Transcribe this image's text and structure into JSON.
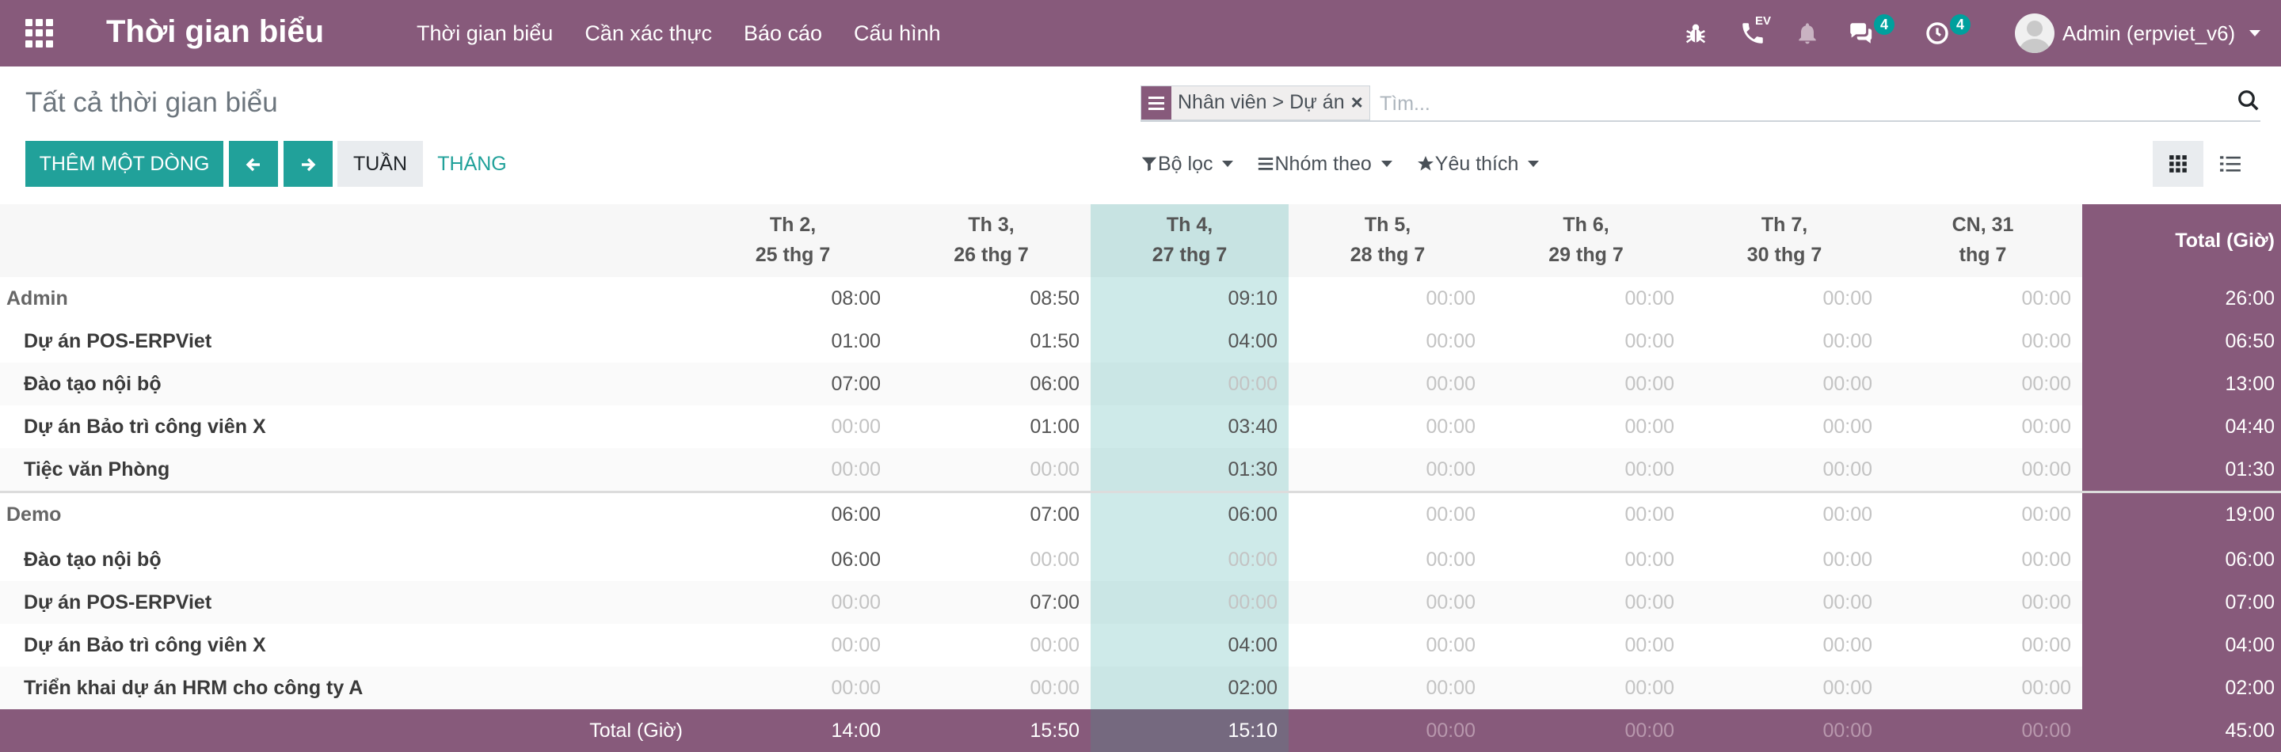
{
  "navbar": {
    "brand": "Thời gian biểu",
    "menu": [
      "Thời gian biểu",
      "Cần xác thực",
      "Báo cáo",
      "Cấu hình"
    ],
    "phone_badge": "EV",
    "messages_count": "4",
    "activities_count": "4",
    "user_name": "Admin (erpviet_v6)"
  },
  "control_panel": {
    "title": "Tất cả thời gian biểu",
    "add_line": "THÊM MỘT DÒNG",
    "week": "TUẦN",
    "month": "THÁNG",
    "search_facet": "Nhân viên > Dự án",
    "search_placeholder": "Tìm...",
    "filter": "Bộ lọc",
    "group_by": "Nhóm theo",
    "favorites": "Yêu thích"
  },
  "colors": {
    "brand": "#875a7b",
    "primary": "#21a19a"
  },
  "grid": {
    "days": [
      {
        "line1": "Th 2,",
        "line2": "25 thg 7"
      },
      {
        "line1": "Th 3,",
        "line2": "26 thg 7"
      },
      {
        "line1": "Th 4,",
        "line2": "27 thg 7",
        "today": true
      },
      {
        "line1": "Th 5,",
        "line2": "28 thg 7"
      },
      {
        "line1": "Th 6,",
        "line2": "29 thg 7"
      },
      {
        "line1": "Th 7,",
        "line2": "30 thg 7"
      },
      {
        "line1": "CN, 31",
        "line2": "thg 7"
      }
    ],
    "total_header": "Total (Giờ)",
    "groups": [
      {
        "name": "Admin",
        "totals": [
          "08:00",
          "08:50",
          "09:10",
          "00:00",
          "00:00",
          "00:00",
          "00:00"
        ],
        "total": "26:00",
        "rows": [
          {
            "name": "Dự án POS-ERPViet",
            "values": [
              "01:00",
              "01:50",
              "04:00",
              "00:00",
              "00:00",
              "00:00",
              "00:00"
            ],
            "total": "06:50"
          },
          {
            "name": "Đào tạo nội bộ",
            "values": [
              "07:00",
              "06:00",
              "00:00",
              "00:00",
              "00:00",
              "00:00",
              "00:00"
            ],
            "total": "13:00"
          },
          {
            "name": "Dự án Bảo trì công viên X",
            "values": [
              "00:00",
              "01:00",
              "03:40",
              "00:00",
              "00:00",
              "00:00",
              "00:00"
            ],
            "total": "04:40"
          },
          {
            "name": "Tiệc văn Phòng",
            "values": [
              "00:00",
              "00:00",
              "01:30",
              "00:00",
              "00:00",
              "00:00",
              "00:00"
            ],
            "total": "01:30"
          }
        ]
      },
      {
        "name": "Demo",
        "totals": [
          "06:00",
          "07:00",
          "06:00",
          "00:00",
          "00:00",
          "00:00",
          "00:00"
        ],
        "total": "19:00",
        "rows": [
          {
            "name": "Đào tạo nội bộ",
            "values": [
              "06:00",
              "00:00",
              "00:00",
              "00:00",
              "00:00",
              "00:00",
              "00:00"
            ],
            "total": "06:00"
          },
          {
            "name": "Dự án POS-ERPViet",
            "values": [
              "00:00",
              "07:00",
              "00:00",
              "00:00",
              "00:00",
              "00:00",
              "00:00"
            ],
            "total": "07:00"
          },
          {
            "name": "Dự án Bảo trì công viên X",
            "values": [
              "00:00",
              "00:00",
              "04:00",
              "00:00",
              "00:00",
              "00:00",
              "00:00"
            ],
            "total": "04:00"
          },
          {
            "name": "Triển khai dự án HRM cho công ty A",
            "values": [
              "00:00",
              "00:00",
              "02:00",
              "00:00",
              "00:00",
              "00:00",
              "00:00"
            ],
            "total": "02:00"
          }
        ]
      }
    ],
    "footer": {
      "label": "Total (Giờ)",
      "values": [
        "14:00",
        "15:50",
        "15:10",
        "00:00",
        "00:00",
        "00:00",
        "00:00"
      ],
      "total": "45:00"
    }
  }
}
